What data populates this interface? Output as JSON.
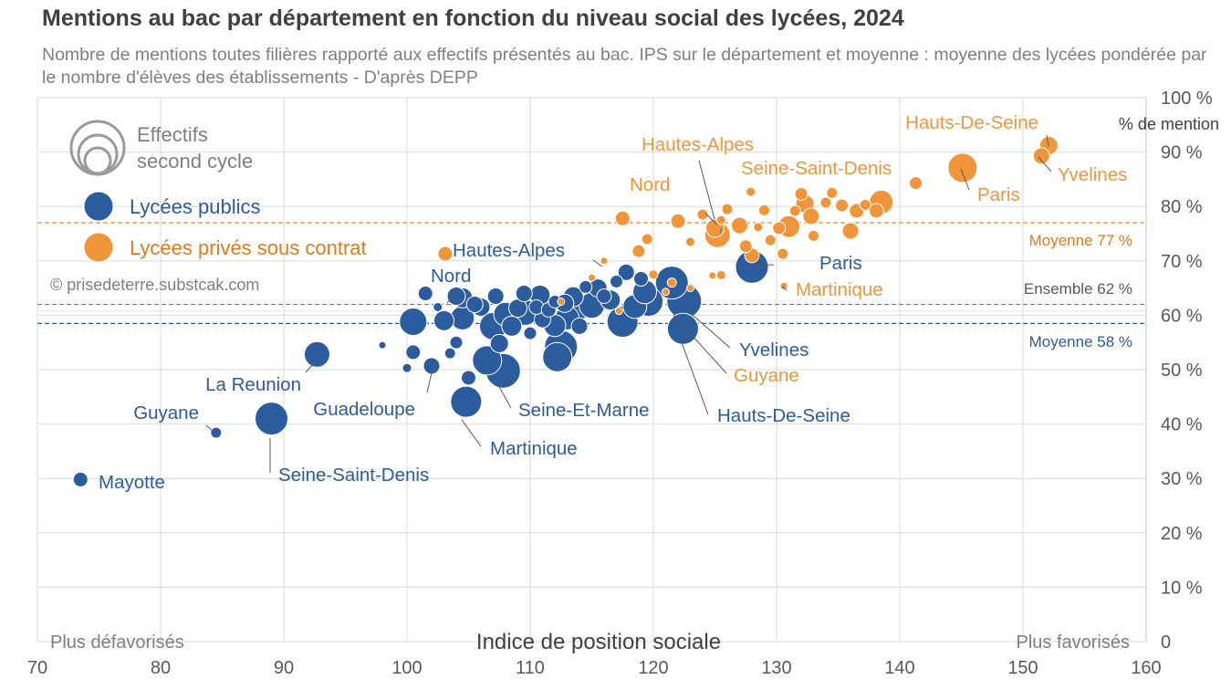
{
  "title": "Mentions au bac par département en fonction du niveau social des lycées, 2024",
  "subtitle": "Nombre de mentions toutes filières rapporté aux effectifs présentés au bac. IPS sur le département et moyenne : moyenne des lycées pondérée par le nombre d'élèves des établissements - D'après DEPP",
  "colors": {
    "public": "#2b5c9e",
    "prive": "#f0953a",
    "grid": "#d9d9d9",
    "ensemble": "#7f7f7f"
  },
  "legend": {
    "size_label_1": "Effectifs",
    "size_label_2": "second cycle",
    "public_label": "Lycées publics",
    "prive_label": "Lycées privés sous contrat"
  },
  "credit": "© prisedeterre.substcak.com",
  "chart_data": {
    "type": "scatter",
    "title": "Mentions au bac par département en fonction du niveau social des lycées, 2024",
    "xlabel": "Indice de position sociale",
    "ylabel": "% de mention",
    "xlim": [
      70,
      160
    ],
    "ylim": [
      0,
      100
    ],
    "x_ticks": [
      "70",
      "80",
      "90",
      "100",
      "110",
      "120",
      "130",
      "140",
      "150",
      "160"
    ],
    "y_ticks": [
      "0",
      "10 %",
      "20 %",
      "30 %",
      "40 %",
      "50 %",
      "60 %",
      "70 %",
      "80 %",
      "90 %",
      "100 %"
    ],
    "x_left_note": "Plus défavorisés",
    "x_right_note": "Plus favorisés",
    "grid": true,
    "reference_lines": [
      {
        "name": "prive",
        "value": 77,
        "label": "Moyenne 77 %"
      },
      {
        "name": "ensemble",
        "value": 62,
        "label": "Ensemble 62 %"
      },
      {
        "name": "public",
        "value": 58.5,
        "label": "Moyenne 58 %"
      }
    ],
    "series": [
      {
        "name": "Lycées publics",
        "points": [
          [
            73.5,
            29.8,
            8,
            "Mayotte"
          ],
          [
            84.5,
            38.4,
            6,
            "Guyane"
          ],
          [
            89,
            41,
            18,
            "Seine-Saint-Denis"
          ],
          [
            92.7,
            52.8,
            14,
            "La Reunion"
          ],
          [
            98,
            54.5,
            4
          ],
          [
            100,
            50.3,
            5
          ],
          [
            100.5,
            53.2,
            8
          ],
          [
            100.5,
            58.8,
            15
          ],
          [
            101.5,
            64,
            8
          ],
          [
            102,
            50.7,
            9,
            "Guadeloupe"
          ],
          [
            102.5,
            61.5,
            5
          ],
          [
            103,
            59,
            11
          ],
          [
            103.5,
            53,
            6
          ],
          [
            104,
            55,
            7
          ],
          [
            104,
            63.5,
            10,
            "Nord"
          ],
          [
            104.5,
            59.5,
            13
          ],
          [
            104.8,
            44.1,
            17,
            "Martinique"
          ],
          [
            105,
            48.5,
            8
          ],
          [
            105.5,
            62,
            9
          ],
          [
            106,
            61.5,
            10
          ],
          [
            106.5,
            51.7,
            16
          ],
          [
            107,
            58,
            15
          ],
          [
            107.2,
            63.5,
            9
          ],
          [
            107.5,
            54.8,
            10
          ],
          [
            107.8,
            49.8,
            19,
            "Seine-Et-Marne"
          ],
          [
            108,
            60.2,
            13
          ],
          [
            108.5,
            58,
            11
          ],
          [
            109,
            61.3,
            10
          ],
          [
            109.5,
            64,
            9
          ],
          [
            110,
            56.7,
            7
          ],
          [
            110.5,
            61.5,
            8
          ],
          [
            110.8,
            63.7,
            11
          ],
          [
            111,
            59.2,
            9
          ],
          [
            111.5,
            61,
            8
          ],
          [
            112,
            62.5,
            7
          ],
          [
            112,
            58.1,
            12
          ],
          [
            112.2,
            52.3,
            16
          ],
          [
            112.5,
            54.2,
            18
          ],
          [
            112.8,
            62.2,
            10
          ],
          [
            113,
            59.5,
            13
          ],
          [
            113.5,
            63.4,
            11
          ],
          [
            113.8,
            61.4,
            14
          ],
          [
            114,
            58,
            9
          ],
          [
            114.5,
            65.2,
            7
          ],
          [
            115,
            61.8,
            14
          ],
          [
            115.5,
            65,
            10
          ],
          [
            116,
            63.5,
            8
          ],
          [
            116.5,
            62.8,
            11
          ],
          [
            117,
            66.2,
            7
          ],
          [
            117.5,
            58.8,
            17
          ],
          [
            117.8,
            67.9,
            9
          ],
          [
            118.5,
            61.6,
            13
          ],
          [
            119,
            66.7,
            8
          ],
          [
            119.3,
            64.3,
            13
          ],
          [
            119.6,
            62.5,
            16
          ],
          [
            121.5,
            66,
            18
          ],
          [
            122.5,
            62.6,
            19,
            "Hauts-De-Seine"
          ],
          [
            122.4,
            57.5,
            17,
            "Yvelines"
          ],
          [
            128,
            68.9,
            18,
            "Paris"
          ],
          [
            104.5,
            63.2,
            11
          ],
          [
            109.6,
            60.5,
            14
          ]
        ]
      },
      {
        "name": "Lycées privés sous contrat",
        "points": [
          [
            103.1,
            71.3,
            8
          ],
          [
            112.5,
            62.5,
            4
          ],
          [
            115,
            66.9,
            4
          ],
          [
            116,
            70,
            4
          ],
          [
            117.5,
            77.8,
            8
          ],
          [
            118.8,
            71.8,
            7
          ],
          [
            119.5,
            74,
            6
          ],
          [
            120,
            67.5,
            5
          ],
          [
            121,
            64.3,
            4
          ],
          [
            122,
            77.3,
            8
          ],
          [
            123,
            73.5,
            5
          ],
          [
            124,
            78.5,
            6
          ],
          [
            125,
            76,
            10,
            "Nord"
          ],
          [
            125.2,
            74.8,
            14,
            "Seine-Saint-Denis"
          ],
          [
            125.5,
            67.4,
            5
          ],
          [
            126,
            79.5,
            6
          ],
          [
            127,
            76.5,
            9
          ],
          [
            127.5,
            72.7,
            7
          ],
          [
            128,
            71,
            8
          ],
          [
            128.5,
            76.2,
            5
          ],
          [
            129,
            79.3,
            6
          ],
          [
            129.5,
            73.8,
            6
          ],
          [
            130.2,
            76,
            7
          ],
          [
            130.5,
            71.3,
            6
          ],
          [
            131,
            76.3,
            12
          ],
          [
            131.5,
            79.2,
            6
          ],
          [
            132,
            82.3,
            7
          ],
          [
            132.3,
            80.5,
            10
          ],
          [
            132.8,
            78.2,
            9
          ],
          [
            133,
            74.6,
            6
          ],
          [
            134,
            80.7,
            6
          ],
          [
            134.5,
            82.5,
            6
          ],
          [
            135.3,
            80.2,
            7
          ],
          [
            136,
            75.5,
            9
          ],
          [
            136.5,
            79.2,
            8
          ],
          [
            137.2,
            80.3,
            6
          ],
          [
            138.1,
            79.2,
            8
          ],
          [
            138.5,
            80.8,
            13
          ],
          [
            141.3,
            84.3,
            7
          ],
          [
            145.1,
            87.1,
            16,
            "Paris"
          ],
          [
            151.5,
            89.3,
            9
          ],
          [
            152.1,
            91.2,
            10,
            "Hauts-De-Seine"
          ],
          [
            117.2,
            60.8,
            4
          ],
          [
            121.5,
            66,
            5
          ],
          [
            123,
            65,
            4
          ],
          [
            124.8,
            67.3,
            4
          ],
          [
            127.9,
            82.7,
            5
          ],
          [
            130.6,
            65.4,
            4,
            "Martinique"
          ],
          [
            125.5,
            77.5,
            5
          ]
        ]
      }
    ],
    "point_labels": [
      {
        "series": "public",
        "text": "Mayotte"
      },
      {
        "series": "public",
        "text": "Guyane"
      },
      {
        "series": "public",
        "text": "Seine-Saint-Denis"
      },
      {
        "series": "public",
        "text": "La Reunion"
      },
      {
        "series": "public",
        "text": "Guadeloupe"
      },
      {
        "series": "public",
        "text": "Martinique"
      },
      {
        "series": "public",
        "text": "Seine-Et-Marne"
      },
      {
        "series": "public",
        "text": "Nord"
      },
      {
        "series": "public",
        "text": "Hautes-Alpes"
      },
      {
        "series": "public",
        "text": "Hauts-De-Seine"
      },
      {
        "series": "public",
        "text": "Yvelines"
      },
      {
        "series": "public",
        "text": "Paris"
      },
      {
        "series": "prive",
        "text": "Hauts-De-Seine"
      },
      {
        "series": "prive",
        "text": "Yvelines"
      },
      {
        "series": "prive",
        "text": "Paris"
      },
      {
        "series": "prive",
        "text": "Hautes-Alpes"
      },
      {
        "series": "prive",
        "text": "Nord"
      },
      {
        "series": "prive",
        "text": "Seine-Saint-Denis"
      },
      {
        "series": "prive",
        "text": "Martinique"
      },
      {
        "series": "prive",
        "text": "Guyane"
      }
    ]
  }
}
